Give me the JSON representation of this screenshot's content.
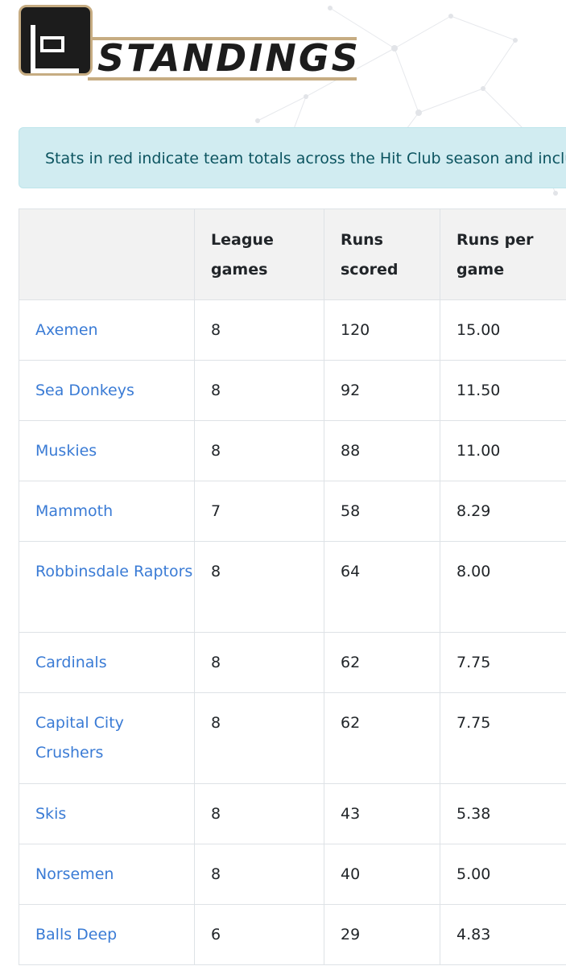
{
  "logo": {
    "text": "STANDINGS",
    "colors": {
      "frame": "#c6ac82",
      "dark": "#1c1c1c"
    }
  },
  "alert": {
    "text": "Stats in red indicate team totals across the Hit Club season and inclu"
  },
  "table": {
    "headers": [
      "",
      "League games",
      "Runs scored",
      "Runs per game"
    ],
    "rows": [
      {
        "team": "Axemen",
        "games": "8",
        "runs": "120",
        "rpg": "15.00"
      },
      {
        "team": "Sea Donkeys",
        "games": "8",
        "runs": "92",
        "rpg": "11.50"
      },
      {
        "team": "Muskies",
        "games": "8",
        "runs": "88",
        "rpg": "11.00"
      },
      {
        "team": "Mammoth",
        "games": "7",
        "runs": "58",
        "rpg": "8.29"
      },
      {
        "team": "Robbinsdale Raptors",
        "games": "8",
        "runs": "64",
        "rpg": "8.00"
      },
      {
        "team": "Cardinals",
        "games": "8",
        "runs": "62",
        "rpg": "7.75"
      },
      {
        "team": "Capital City Crushers",
        "games": "8",
        "runs": "62",
        "rpg": "7.75"
      },
      {
        "team": "Skis",
        "games": "8",
        "runs": "43",
        "rpg": "5.38"
      },
      {
        "team": "Norsemen",
        "games": "8",
        "runs": "40",
        "rpg": "5.00"
      },
      {
        "team": "Balls Deep",
        "games": "6",
        "runs": "29",
        "rpg": "4.83"
      }
    ]
  },
  "colors": {
    "link": "#3a7bd5",
    "alert_bg": "#d1ecf1",
    "alert_text": "#0c5460",
    "header_bg": "#f2f2f2"
  }
}
